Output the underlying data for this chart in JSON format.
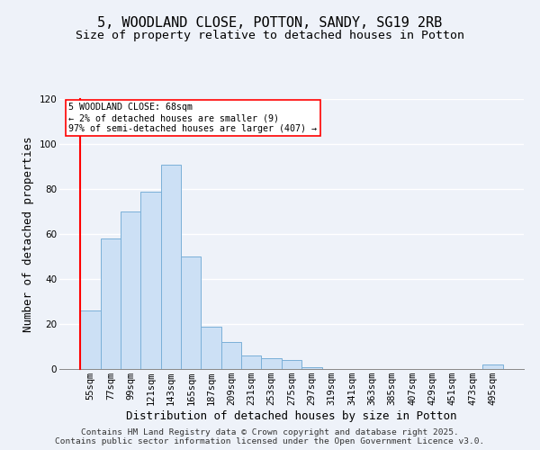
{
  "title": "5, WOODLAND CLOSE, POTTON, SANDY, SG19 2RB",
  "subtitle": "Size of property relative to detached houses in Potton",
  "xlabel": "Distribution of detached houses by size in Potton",
  "ylabel": "Number of detached properties",
  "bar_labels": [
    "55sqm",
    "77sqm",
    "99sqm",
    "121sqm",
    "143sqm",
    "165sqm",
    "187sqm",
    "209sqm",
    "231sqm",
    "253sqm",
    "275sqm",
    "297sqm",
    "319sqm",
    "341sqm",
    "363sqm",
    "385sqm",
    "407sqm",
    "429sqm",
    "451sqm",
    "473sqm",
    "495sqm"
  ],
  "bar_values": [
    26,
    58,
    70,
    79,
    91,
    50,
    19,
    12,
    6,
    5,
    4,
    1,
    0,
    0,
    0,
    0,
    0,
    0,
    0,
    0,
    2
  ],
  "bar_color": "#cce0f5",
  "bar_edge_color": "#7ab0d8",
  "ylim": [
    0,
    120
  ],
  "yticks": [
    0,
    20,
    40,
    60,
    80,
    100,
    120
  ],
  "property_line_label": "5 WOODLAND CLOSE: 68sqm",
  "annotation_line1": "← 2% of detached houses are smaller (9)",
  "annotation_line2": "97% of semi-detached houses are larger (407) →",
  "footer1": "Contains HM Land Registry data © Crown copyright and database right 2025.",
  "footer2": "Contains public sector information licensed under the Open Government Licence v3.0.",
  "background_color": "#eef2f9",
  "grid_color": "#ffffff",
  "title_fontsize": 11,
  "subtitle_fontsize": 9.5,
  "axis_label_fontsize": 9,
  "tick_fontsize": 7.5,
  "footer_fontsize": 6.8
}
